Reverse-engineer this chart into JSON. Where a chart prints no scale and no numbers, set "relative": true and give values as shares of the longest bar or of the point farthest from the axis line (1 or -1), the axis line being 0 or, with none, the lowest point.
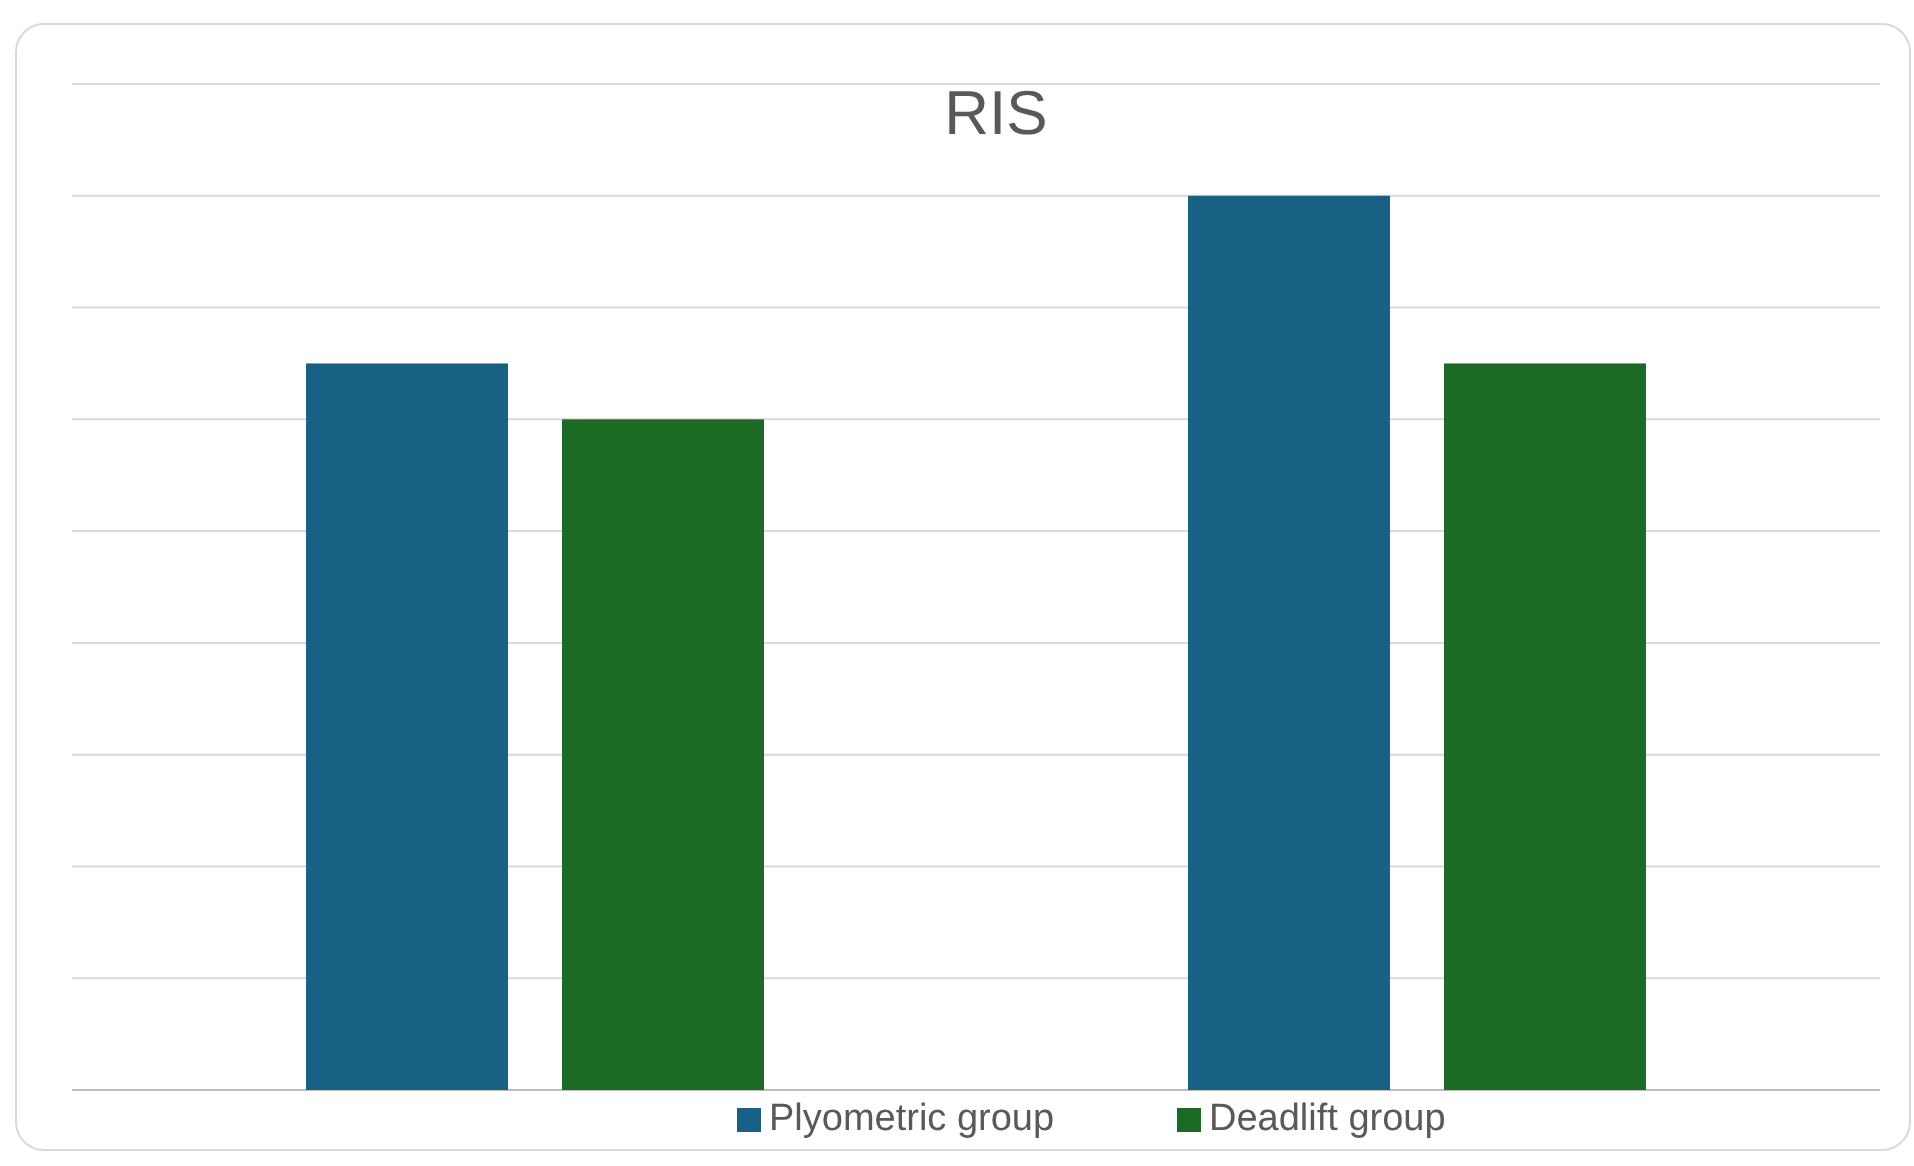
{
  "chart_data": {
    "type": "bar",
    "title": "RIS",
    "categories": [
      null,
      null
    ],
    "relative": true,
    "grid": true,
    "legend": "bottom",
    "series": [
      {
        "name": "Plyometric group",
        "color": "#176184",
        "values": [
          0.8125,
          1
        ]
      },
      {
        "name": "Deadlift group",
        "color": "#1b6b24",
        "values": [
          0.75,
          0.8125
        ]
      }
    ]
  }
}
